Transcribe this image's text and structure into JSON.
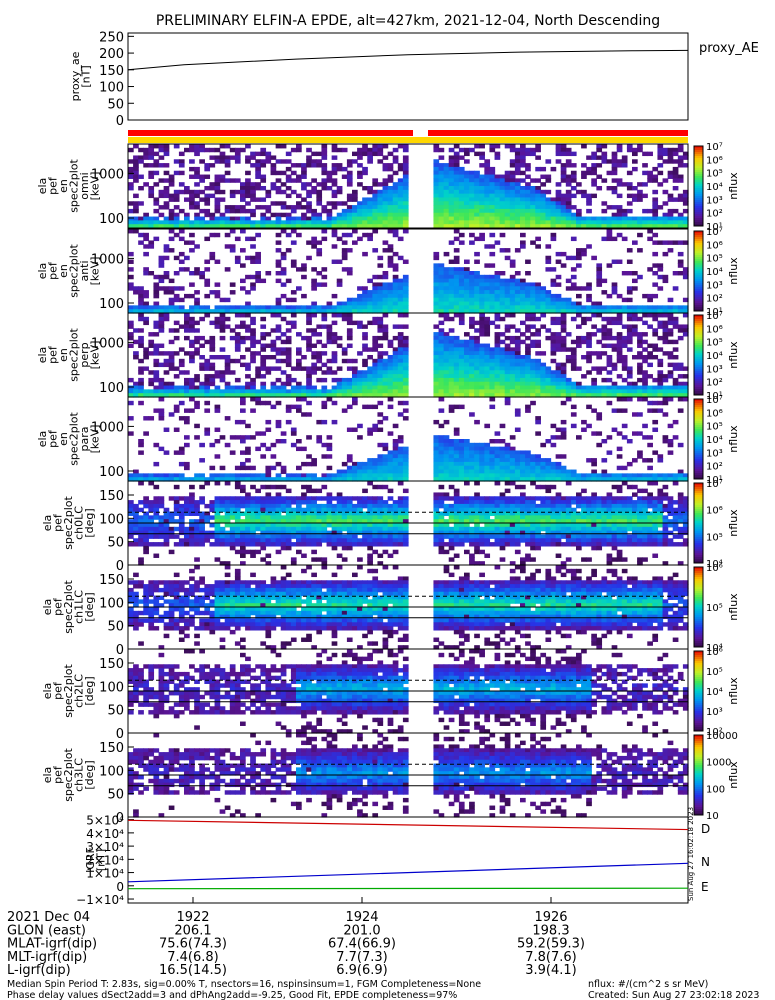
{
  "title": "PRELIMINARY ELFIN-A EPDE, alt=427km, 2021-12-04, North Descending",
  "chart_data": [
    {
      "type": "line",
      "ylabel": "proxy_ae\n[nT]",
      "ylim": [
        0,
        260
      ],
      "yticks": [
        "250",
        "200",
        "150",
        "100",
        "50",
        "0"
      ],
      "legend": "proxy_AE",
      "series": [
        {
          "name": "proxy_AE",
          "color": "#000000",
          "x": [
            0,
            0.1,
            0.3,
            0.5,
            0.7,
            0.9,
            1.0
          ],
          "values": [
            150,
            165,
            182,
            195,
            203,
            207,
            208
          ]
        }
      ]
    },
    {
      "type": "heatmap",
      "panels": [
        {
          "ylabel": "ela\npef\nen\nspec2plot\nomni\n[keV]",
          "yticks": [
            "1000",
            "100"
          ],
          "colorbar": "energy",
          "kind": "energy",
          "intensity": 1.0
        },
        {
          "ylabel": "ela\npef\nen\nspec2plot\nanti\n[keV]",
          "yticks": [
            "1000",
            "100"
          ],
          "colorbar": "energy",
          "kind": "energy",
          "intensity": 0.35
        },
        {
          "ylabel": "ela\npef\nen\nspec2plot\nperp\n[keV]",
          "yticks": [
            "1000",
            "100"
          ],
          "colorbar": "energy",
          "kind": "energy",
          "intensity": 0.95
        },
        {
          "ylabel": "ela\npef\nen\nspec2plot\npara\n[keV]",
          "yticks": [
            "1000",
            "100"
          ],
          "colorbar": "energy",
          "kind": "energy",
          "intensity": 0.25
        },
        {
          "ylabel": "ela\npef\nspec2plot\nch0LC\n[deg]",
          "yticks": [
            "150",
            "100",
            "50",
            "0"
          ],
          "colorbar": "pa0",
          "kind": "pa",
          "intensity": 0.9
        },
        {
          "ylabel": "ela\npef\nspec2plot\nch1LC\n[deg]",
          "yticks": [
            "150",
            "100",
            "50",
            "0"
          ],
          "colorbar": "pa1",
          "kind": "pa",
          "intensity": 0.8
        },
        {
          "ylabel": "ela\npef\nspec2plot\nch2LC\n[deg]",
          "yticks": [
            "150",
            "100",
            "50",
            "0"
          ],
          "colorbar": "pa2",
          "kind": "pa",
          "intensity": 0.6
        },
        {
          "ylabel": "ela\npef\nspec2plot\nch3LC\n[deg]",
          "yticks": [
            "150",
            "100",
            "50",
            "0"
          ],
          "colorbar": "pa3",
          "kind": "pa",
          "intensity": 0.5
        }
      ],
      "colorbars": {
        "energy": {
          "label": "nflux",
          "ticks": [
            "10⁷",
            "10⁶",
            "10⁵",
            "10⁴",
            "10³",
            "10²",
            "10¹"
          ]
        },
        "pa0": {
          "label": "nflux",
          "ticks": [
            "10⁷",
            "10⁶",
            "10⁵",
            "10⁴"
          ]
        },
        "pa1": {
          "label": "nflux",
          "ticks": [
            "10⁶",
            "10⁵",
            "10⁴"
          ]
        },
        "pa2": {
          "label": "nflux",
          "ticks": [
            "10⁶",
            "10⁵",
            "10⁴",
            "10³",
            "10²"
          ]
        },
        "pa3": {
          "label": "nflux",
          "ticks": [
            "10000",
            "1000",
            "100",
            "10"
          ]
        }
      }
    },
    {
      "type": "line",
      "ylabel": "IGRF\n[nT]",
      "yticks": [
        "5×10⁴",
        "4×10⁴",
        "3×10⁴",
        "2×10⁴",
        "1×10⁴",
        "0",
        "−1×10⁴"
      ],
      "ylim": [
        -13000,
        52000
      ],
      "series": [
        {
          "name": "D",
          "color": "#cc0000",
          "x": [
            0,
            1
          ],
          "values": [
            49500,
            42500
          ]
        },
        {
          "name": "N",
          "color": "#0000cc",
          "x": [
            0,
            1
          ],
          "values": [
            3000,
            17000
          ]
        },
        {
          "name": "E",
          "color": "#00aa00",
          "x": [
            0,
            1
          ],
          "values": [
            -2200,
            -1800
          ]
        }
      ]
    }
  ],
  "xaxis": {
    "ticks": [
      "1922",
      "1924",
      "1926"
    ],
    "rows": [
      {
        "label": "2021 Dec 04",
        "values": [
          "1922",
          "1924",
          "1926"
        ]
      },
      {
        "label": "GLON (east)",
        "values": [
          "206.1",
          "201.0",
          "198.3"
        ]
      },
      {
        "label": "MLAT-igrf(dip)",
        "values": [
          "75.6(74.3)",
          "67.4(66.9)",
          "59.2(59.3)"
        ]
      },
      {
        "label": "MLT-igrf(dip)",
        "values": [
          "7.4(6.8)",
          "7.7(7.3)",
          "7.8(7.6)"
        ]
      },
      {
        "label": "L-igrf(dip)",
        "values": [
          "16.5(14.5)",
          "6.9(6.9)",
          "3.9(4.1)"
        ]
      }
    ]
  },
  "footer": {
    "line1": "Median Spin Period T: 2.83s, sig=0.00% T, nsectors=16, nspinsinsum=1, FGM Completeness=None",
    "line2": "Phase delay values dSect2add=3 and dPhAng2add=-9.25, Good Fit, EPDE completeness=97%",
    "right1": "nflux: #/(cm^2 s sr MeV)",
    "right2": "Created: Sun Aug 27 23:02:18 2023"
  },
  "stamp": "Sun Aug 27 16:02:18 2023",
  "colors": {
    "bar_red": "#ff0000",
    "bar_yellow": "#ffd700",
    "dark": "#2a0a3a"
  }
}
